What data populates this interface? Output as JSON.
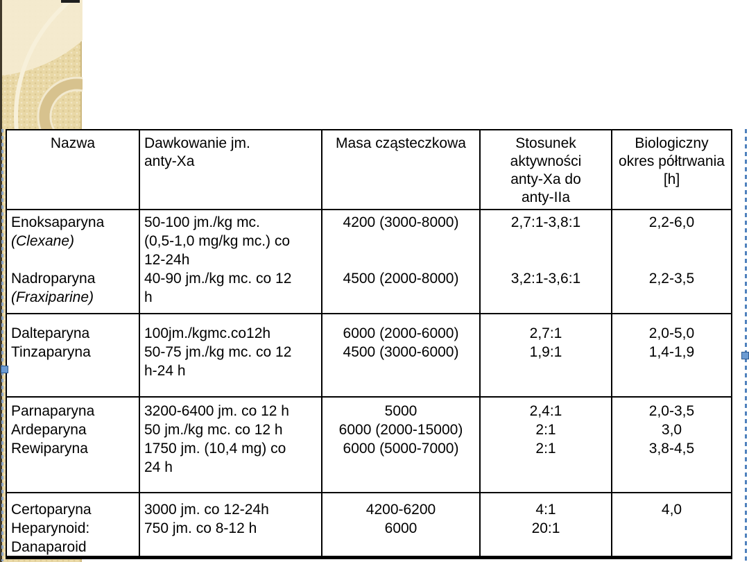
{
  "slide": {
    "kind": "presentation-slide-with-selected-table"
  },
  "colors": {
    "table_border": "#000000",
    "table_background": "#ffffff",
    "sidebar_beige": "#e9d8a6",
    "sidebar_ring": "#d7c28e",
    "sidebar_light": "#f4ebd0",
    "selection_blue": "#4f81bd",
    "handle_blue": "#6b9bd2"
  },
  "decorations": {
    "sidebar_name": "template-circles",
    "left_handle": "resize-handle",
    "right_handle": "resize-handle"
  },
  "table": {
    "columns": [
      {
        "key": "nazwa",
        "header_align": "center",
        "body_align": "left"
      },
      {
        "key": "dawkowanie",
        "header_align": "left",
        "body_align": "left"
      },
      {
        "key": "masa",
        "header_align": "center",
        "body_align": "center"
      },
      {
        "key": "stosunek",
        "header_align": "center",
        "body_align": "center"
      },
      {
        "key": "biologiczny",
        "header_align": "center",
        "body_align": "center"
      }
    ],
    "header": {
      "cells": [
        {
          "lines": [
            {
              "text": "Nazwa"
            }
          ]
        },
        {
          "lines": [
            {
              "text": "Dawkowanie jm."
            },
            {
              "text": "anty-Xa"
            }
          ]
        },
        {
          "lines": [
            {
              "text": "Masa cząsteczkowa"
            }
          ]
        },
        {
          "lines": [
            {
              "text": "Stosunek"
            },
            {
              "text": "aktywności"
            },
            {
              "text": "anty-Xa do"
            },
            {
              "text": "anty-IIa"
            }
          ]
        },
        {
          "lines": [
            {
              "text": "Biologiczny"
            },
            {
              "text": "okres półtrwania"
            },
            {
              "text": "[h]"
            }
          ]
        }
      ]
    },
    "groups": [
      {
        "cells": [
          {
            "lines": [
              {
                "text": "Enoksaparyna"
              },
              {
                "text": "(Clexane)",
                "italic": true
              },
              {
                "text": ""
              },
              {
                "text": "Nadroparyna"
              },
              {
                "text": "(Fraxiparine)",
                "italic": true
              }
            ]
          },
          {
            "lines": [
              {
                "text": "50-100 jm./kg mc."
              },
              {
                "text": "(0,5-1,0 mg/kg mc.) co"
              },
              {
                "text": "12-24h"
              },
              {
                "text": "40-90 jm./kg mc. co 12"
              },
              {
                "text": "h"
              }
            ]
          },
          {
            "lines": [
              {
                "text": "4200 (3000-8000)"
              },
              {
                "text": ""
              },
              {
                "text": ""
              },
              {
                "text": "4500 (2000-8000)"
              }
            ]
          },
          {
            "lines": [
              {
                "text": "2,7:1-3,8:1"
              },
              {
                "text": ""
              },
              {
                "text": ""
              },
              {
                "text": "3,2:1-3,6:1"
              }
            ]
          },
          {
            "lines": [
              {
                "text": "2,2-6,0"
              },
              {
                "text": ""
              },
              {
                "text": ""
              },
              {
                "text": "2,2-3,5"
              }
            ]
          }
        ]
      },
      {
        "cells": [
          {
            "lines": [
              {
                "text": "Dalteparyna"
              },
              {
                "text": "Tinzaparyna"
              }
            ]
          },
          {
            "lines": [
              {
                "text": "100jm./kgmc.co12h"
              },
              {
                "text": "50-75 jm./kg mc. co 12"
              },
              {
                "text": "h-24 h"
              }
            ]
          },
          {
            "lines": [
              {
                "text": "6000 (2000-6000)"
              },
              {
                "text": "4500 (3000-6000)"
              }
            ]
          },
          {
            "lines": [
              {
                "text": "2,7:1"
              },
              {
                "text": "1,9:1"
              }
            ]
          },
          {
            "lines": [
              {
                "text": "2,0-5,0"
              },
              {
                "text": "1,4-1,9"
              }
            ]
          }
        ]
      },
      {
        "cells": [
          {
            "lines": [
              {
                "text": "Parnaparyna"
              },
              {
                "text": "Ardeparyna"
              },
              {
                "text": "Rewiparyna"
              }
            ]
          },
          {
            "lines": [
              {
                "text": "3200-6400 jm. co 12 h"
              },
              {
                "text": "50 jm./kg mc. co 12 h"
              },
              {
                "text": "1750 jm. (10,4 mg) co"
              },
              {
                "text": "24 h"
              }
            ]
          },
          {
            "lines": [
              {
                "text": "5000"
              },
              {
                "text": "6000 (2000-15000)"
              },
              {
                "text": "6000 (5000-7000)"
              }
            ]
          },
          {
            "lines": [
              {
                "text": "2,4:1"
              },
              {
                "text": "2:1"
              },
              {
                "text": "2:1"
              }
            ]
          },
          {
            "lines": [
              {
                "text": "2,0-3,5"
              },
              {
                "text": "3,0"
              },
              {
                "text": "3,8-4,5"
              }
            ]
          }
        ]
      },
      {
        "cells": [
          {
            "lines": [
              {
                "text": "Certoparyna"
              },
              {
                "text": "Heparynoid:"
              },
              {
                "text": "Danaparoid"
              }
            ]
          },
          {
            "lines": [
              {
                "text": "3000 jm. co 12-24h"
              },
              {
                "text": "750 jm. co 8-12 h"
              }
            ]
          },
          {
            "lines": [
              {
                "text": "4200-6200"
              },
              {
                "text": "6000"
              }
            ]
          },
          {
            "lines": [
              {
                "text": "4:1"
              },
              {
                "text": "20:1"
              }
            ]
          },
          {
            "lines": [
              {
                "text": "4,0"
              }
            ]
          }
        ]
      }
    ]
  }
}
